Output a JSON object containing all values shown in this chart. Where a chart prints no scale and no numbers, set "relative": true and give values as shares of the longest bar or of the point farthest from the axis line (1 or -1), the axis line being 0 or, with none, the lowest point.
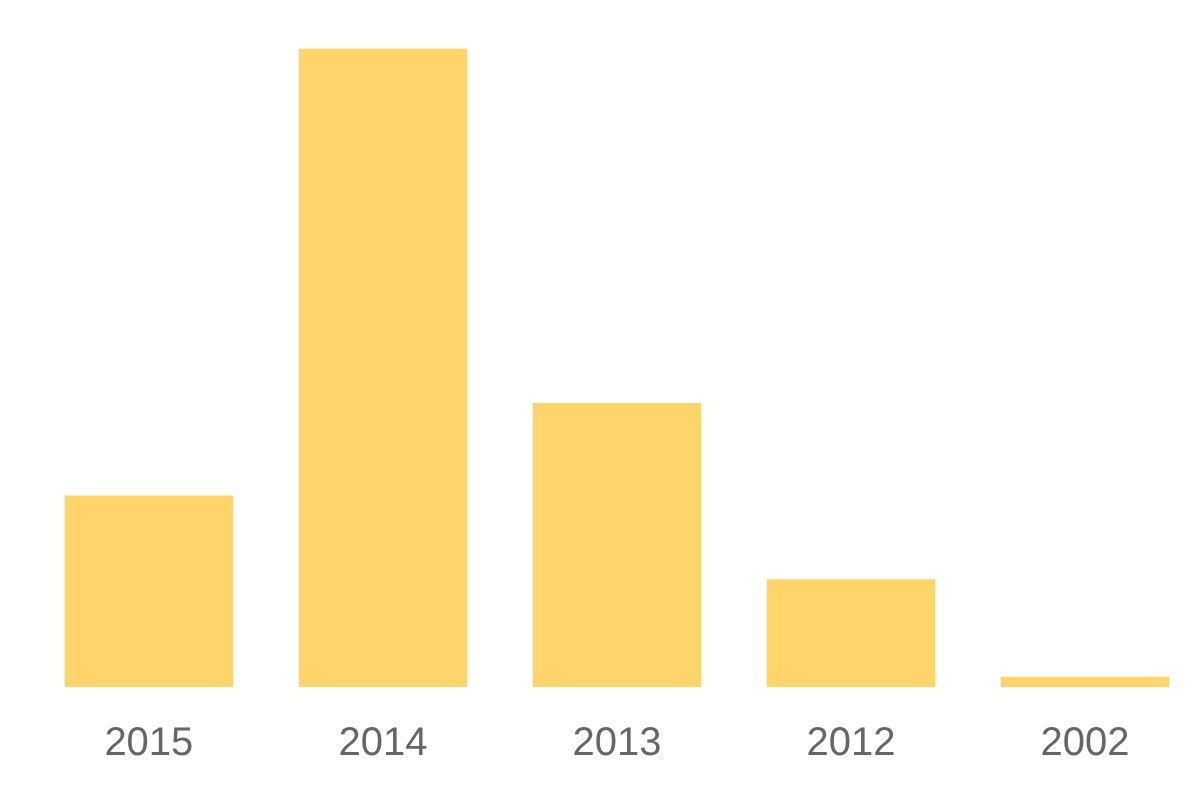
{
  "chart_data": {
    "type": "bar",
    "relative": true,
    "categories": [
      "2015",
      "2014",
      "2013",
      "2012",
      "2002"
    ],
    "values": [
      0.3,
      1,
      0.445,
      0.169,
      0.016
    ],
    "color": "#ffd56b",
    "grid": false
  }
}
